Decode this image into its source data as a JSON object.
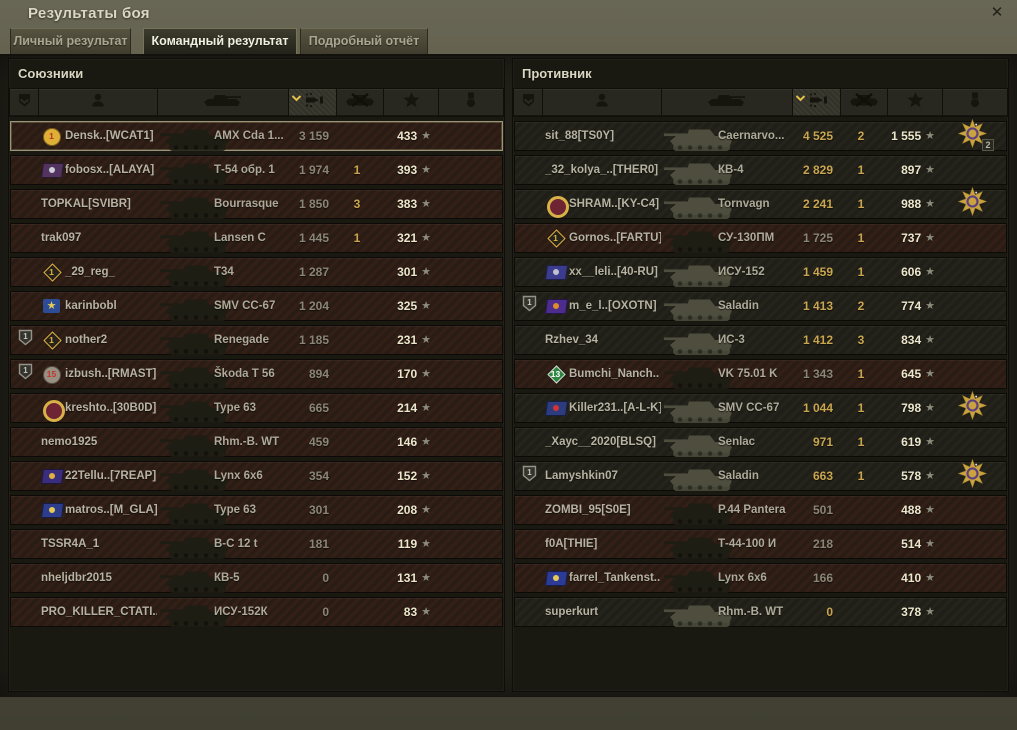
{
  "window": {
    "title": "Результаты боя",
    "close_glyph": "✕"
  },
  "tabs": [
    {
      "label": "Личный результат",
      "active": false
    },
    {
      "label": "Командный результат",
      "active": true
    },
    {
      "label": "Подробный отчёт",
      "active": false
    }
  ],
  "columns": [
    {
      "key": "rank",
      "icon": "rank-badge-icon"
    },
    {
      "key": "player",
      "icon": "player-icon"
    },
    {
      "key": "vehicle",
      "icon": "tank-icon"
    },
    {
      "key": "damage",
      "icon": "shell-damage-icon"
    },
    {
      "key": "kills",
      "icon": "destroyed-tank-icon"
    },
    {
      "key": "xp",
      "icon": "star-icon"
    },
    {
      "key": "medal",
      "icon": "medal-icon"
    }
  ],
  "sort": {
    "column": "damage",
    "direction": "desc"
  },
  "colors": {
    "number_gold": "#c9a64f",
    "number_dim": "#8a8676",
    "xp_value": "#ece7cc",
    "player_name": "#b7b3a2",
    "sort_arrow": "#e3c04a",
    "dead_row_bg": "#291c15",
    "alive_row_bg": "#201f17"
  },
  "teams": [
    {
      "id": "allies",
      "title": "Союзники",
      "rows": [
        {
          "player": "Densk..[WCAT1]",
          "vehicle": "AMX Cda 1...",
          "damage": "3 159",
          "kills": "",
          "xp": "433",
          "destroyed": true,
          "self": true,
          "rank": "",
          "medal": false,
          "medal_count": "",
          "emblem": {
            "kind": "round",
            "c1": "#dfae36",
            "c2": "#8a2f24",
            "tc": "#b23325",
            "text": "1"
          }
        },
        {
          "player": "fobosx..[ALAYA]",
          "vehicle": "Т-54 обр. 1",
          "damage": "1 974",
          "kills": "1",
          "xp": "393",
          "destroyed": true,
          "self": false,
          "rank": "",
          "medal": false,
          "medal_count": "",
          "emblem": {
            "kind": "flag",
            "c1": "#53335f",
            "c2": "#cfcfd8",
            "tc": "",
            "text": ""
          }
        },
        {
          "player": "TOPKAL[SVIBR]",
          "vehicle": "Bourrasque",
          "damage": "1 850",
          "kills": "3",
          "xp": "383",
          "destroyed": true,
          "self": false,
          "rank": "",
          "medal": false,
          "medal_count": "",
          "emblem": null
        },
        {
          "player": "trak097",
          "vehicle": "Lansen C",
          "damage": "1 445",
          "kills": "1",
          "xp": "321",
          "destroyed": true,
          "self": false,
          "rank": "",
          "medal": false,
          "medal_count": "",
          "emblem": null
        },
        {
          "player": "_29_reg_",
          "vehicle": "Т34",
          "damage": "1 287",
          "kills": "",
          "xp": "301",
          "destroyed": true,
          "self": false,
          "rank": "",
          "medal": false,
          "medal_count": "",
          "emblem": {
            "kind": "diamond",
            "c1": "#26221c",
            "c2": "#e0b23f",
            "tc": "#e0b23f",
            "text": "1"
          }
        },
        {
          "player": "karinbobl",
          "vehicle": "SMV CC-67",
          "damage": "1 204",
          "kills": "",
          "xp": "325",
          "destroyed": true,
          "self": false,
          "rank": "",
          "medal": false,
          "medal_count": "",
          "emblem": {
            "kind": "star",
            "c1": "#2c4d96",
            "c2": "#e6ca57",
            "tc": "#e6ca57",
            "text": "★"
          }
        },
        {
          "player": "nother2",
          "vehicle": "Renegade",
          "damage": "1 185",
          "kills": "",
          "xp": "231",
          "destroyed": true,
          "self": false,
          "rank": "1",
          "medal": false,
          "medal_count": "",
          "emblem": {
            "kind": "diamond",
            "c1": "#26221c",
            "c2": "#e0b23f",
            "tc": "#e0b23f",
            "text": "1"
          }
        },
        {
          "player": "izbush..[RMAST]",
          "vehicle": "Škoda T 56",
          "damage": "894",
          "kills": "",
          "xp": "170",
          "destroyed": true,
          "self": false,
          "rank": "1",
          "medal": false,
          "medal_count": "",
          "emblem": {
            "kind": "round",
            "c1": "#998f80",
            "c2": "#6a6156",
            "tc": "#c23430",
            "text": "15"
          }
        },
        {
          "player": "kreshto..[30B0D]",
          "vehicle": "Type 63",
          "damage": "665",
          "kills": "",
          "xp": "214",
          "destroyed": true,
          "self": false,
          "rank": "",
          "medal": false,
          "medal_count": "",
          "emblem": {
            "kind": "wreath",
            "c1": "#d8b247",
            "c2": "#6e2433",
            "tc": "",
            "text": ""
          }
        },
        {
          "player": "nemo1925",
          "vehicle": "Rhm.-B. WT",
          "damage": "459",
          "kills": "",
          "xp": "146",
          "destroyed": true,
          "self": false,
          "rank": "",
          "medal": false,
          "medal_count": "",
          "emblem": null
        },
        {
          "player": "22Tellu..[7REAP]",
          "vehicle": "Lynx 6x6",
          "damage": "354",
          "kills": "",
          "xp": "152",
          "destroyed": true,
          "self": false,
          "rank": "",
          "medal": false,
          "medal_count": "",
          "emblem": {
            "kind": "flag",
            "c1": "#3b2d7d",
            "c2": "#e0b23f",
            "tc": "",
            "text": ""
          }
        },
        {
          "player": "matros..[M_GLA]",
          "vehicle": "Type 63",
          "damage": "301",
          "kills": "",
          "xp": "208",
          "destroyed": true,
          "self": false,
          "rank": "",
          "medal": false,
          "medal_count": "",
          "emblem": {
            "kind": "flag",
            "c1": "#2d3c8c",
            "c2": "#e6ca57",
            "tc": "",
            "text": ""
          }
        },
        {
          "player": "TSSR4A_1",
          "vehicle": "B-C 12 t",
          "damage": "181",
          "kills": "",
          "xp": "119",
          "destroyed": true,
          "self": false,
          "rank": "",
          "medal": false,
          "medal_count": "",
          "emblem": null
        },
        {
          "player": "nheljdbr2015",
          "vehicle": "КВ-5",
          "damage": "0",
          "kills": "",
          "xp": "131",
          "destroyed": true,
          "self": false,
          "rank": "",
          "medal": false,
          "medal_count": "",
          "emblem": null
        },
        {
          "player": "PRO_KILLER_CTATI..",
          "vehicle": "ИСУ-152К",
          "damage": "0",
          "kills": "",
          "xp": "83",
          "destroyed": true,
          "self": false,
          "rank": "",
          "medal": false,
          "medal_count": "",
          "emblem": null
        }
      ]
    },
    {
      "id": "enemy",
      "title": "Противник",
      "rows": [
        {
          "player": "sit_88[TS0Y]",
          "vehicle": "Caernarvo...",
          "damage": "4 525",
          "kills": "2",
          "xp": "1 555",
          "destroyed": false,
          "self": false,
          "rank": "",
          "medal": true,
          "medal_count": "2",
          "emblem": null
        },
        {
          "player": "_32_kolya_..[THER0]",
          "vehicle": "КВ-4",
          "damage": "2 829",
          "kills": "1",
          "xp": "897",
          "destroyed": false,
          "self": false,
          "rank": "",
          "medal": false,
          "medal_count": "",
          "emblem": null
        },
        {
          "player": "SHRAM..[KY-C4]",
          "vehicle": "Tornvagn",
          "damage": "2 241",
          "kills": "1",
          "xp": "988",
          "destroyed": false,
          "self": false,
          "rank": "",
          "medal": true,
          "medal_count": "",
          "emblem": {
            "kind": "wreath",
            "c1": "#d8b247",
            "c2": "#6e2433",
            "tc": "",
            "text": ""
          }
        },
        {
          "player": "Gornos..[FARTU]",
          "vehicle": "СУ-130ПМ",
          "damage": "1 725",
          "kills": "1",
          "xp": "737",
          "destroyed": true,
          "self": false,
          "rank": "",
          "medal": false,
          "medal_count": "",
          "emblem": {
            "kind": "diamond",
            "c1": "#26221c",
            "c2": "#e0b23f",
            "tc": "#e0b23f",
            "text": "1"
          }
        },
        {
          "player": "xx__leli..[40-RU]",
          "vehicle": "ИСУ-152",
          "damage": "1 459",
          "kills": "1",
          "xp": "606",
          "destroyed": false,
          "self": false,
          "rank": "",
          "medal": false,
          "medal_count": "",
          "emblem": {
            "kind": "flag",
            "c1": "#3c3c8e",
            "c2": "#c0c0d0",
            "tc": "",
            "text": ""
          }
        },
        {
          "player": "m_e_l..[OXOTN]",
          "vehicle": "Saladin",
          "damage": "1 413",
          "kills": "2",
          "xp": "774",
          "destroyed": false,
          "self": false,
          "rank": "1",
          "medal": false,
          "medal_count": "",
          "emblem": {
            "kind": "flag",
            "c1": "#4c2d8e",
            "c2": "#e08a2e",
            "tc": "",
            "text": ""
          }
        },
        {
          "player": "Rzhev_34",
          "vehicle": "ИС-3",
          "damage": "1 412",
          "kills": "3",
          "xp": "834",
          "destroyed": false,
          "self": false,
          "rank": "",
          "medal": false,
          "medal_count": "",
          "emblem": null
        },
        {
          "player": "Bumchi_Nanch..",
          "vehicle": "VK 75.01 K",
          "damage": "1 343",
          "kills": "1",
          "xp": "645",
          "destroyed": true,
          "self": false,
          "rank": "",
          "medal": false,
          "medal_count": "",
          "emblem": {
            "kind": "diamond",
            "c1": "#2e8741",
            "c2": "#d8d8d8",
            "tc": "#ffffff",
            "text": "13"
          }
        },
        {
          "player": "Killer231..[A-L-K]",
          "vehicle": "SMV CC-67",
          "damage": "1 044",
          "kills": "1",
          "xp": "798",
          "destroyed": false,
          "self": false,
          "rank": "",
          "medal": true,
          "medal_count": "",
          "emblem": {
            "kind": "flag",
            "c1": "#2c3c7e",
            "c2": "#d23434",
            "tc": "",
            "text": ""
          }
        },
        {
          "player": "_Хаус__2020[BLSQ]",
          "vehicle": "Senlac",
          "damage": "971",
          "kills": "1",
          "xp": "619",
          "destroyed": false,
          "self": false,
          "rank": "",
          "medal": false,
          "medal_count": "",
          "emblem": null
        },
        {
          "player": "Lamyshkin07",
          "vehicle": "Saladin",
          "damage": "663",
          "kills": "1",
          "xp": "578",
          "destroyed": false,
          "self": false,
          "rank": "1",
          "medal": true,
          "medal_count": "",
          "emblem": null
        },
        {
          "player": "ZOMBI_95[S0E]",
          "vehicle": "P.44 Pantera",
          "damage": "501",
          "kills": "",
          "xp": "488",
          "destroyed": true,
          "self": false,
          "rank": "",
          "medal": false,
          "medal_count": "",
          "emblem": null
        },
        {
          "player": "f0A[THIE]",
          "vehicle": "Т-44-100 И",
          "damage": "218",
          "kills": "",
          "xp": "514",
          "destroyed": true,
          "self": false,
          "rank": "",
          "medal": false,
          "medal_count": "",
          "emblem": null
        },
        {
          "player": "farrel_Tankenst..",
          "vehicle": "Lynx 6x6",
          "damage": "166",
          "kills": "",
          "xp": "410",
          "destroyed": true,
          "self": false,
          "rank": "",
          "medal": false,
          "medal_count": "",
          "emblem": {
            "kind": "flag",
            "c1": "#2c3c96",
            "c2": "#e6ca57",
            "tc": "",
            "text": ""
          }
        },
        {
          "player": "superkurt",
          "vehicle": "Rhm.-B. WT",
          "damage": "0",
          "kills": "",
          "xp": "378",
          "destroyed": false,
          "self": false,
          "rank": "",
          "medal": false,
          "medal_count": "",
          "emblem": null
        }
      ]
    }
  ]
}
